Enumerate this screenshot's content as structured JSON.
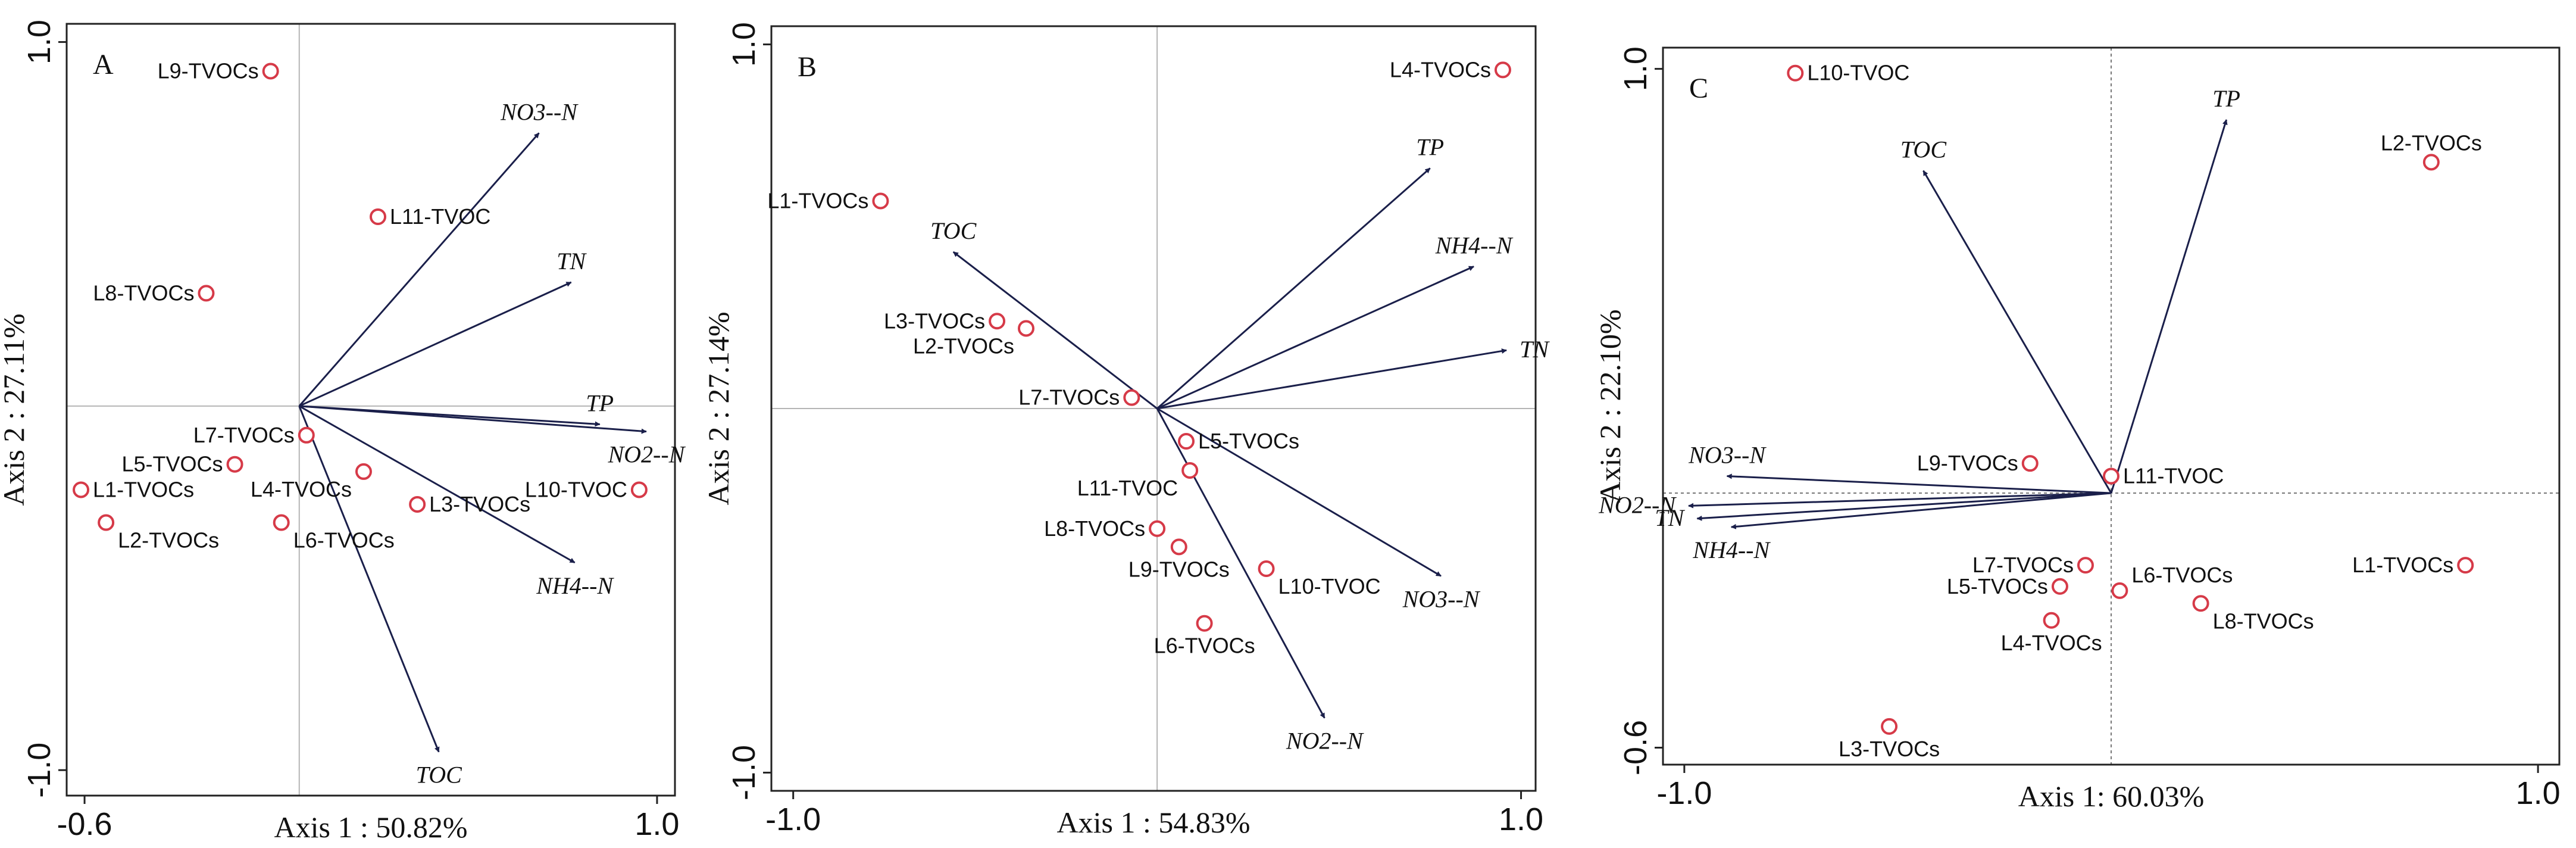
{
  "chart_data": [
    {
      "type": "scatter",
      "panel_label": "A",
      "xlabel": "Axis 1 : 50.82%",
      "ylabel": "Axis 2 : 27.11%",
      "xlim": [
        -0.65,
        1.05
      ],
      "ylim": [
        -1.07,
        1.05
      ],
      "xticks": [
        {
          "v": -0.6,
          "label": "-0.6"
        },
        {
          "v": 1.0,
          "label": "1.0"
        }
      ],
      "yticks": [
        {
          "v": 1.0,
          "label": "1.0"
        },
        {
          "v": -1.0,
          "label": "-1.0"
        }
      ],
      "zero_line_style": "solid",
      "points": [
        {
          "name": "L9-TVOCs",
          "x": -0.08,
          "y": 0.92,
          "label_pos": "left"
        },
        {
          "name": "L11-TVOC",
          "x": 0.22,
          "y": 0.52,
          "label_pos": "right"
        },
        {
          "name": "L8-TVOCs",
          "x": -0.26,
          "y": 0.31,
          "label_pos": "left"
        },
        {
          "name": "L7-TVOCs",
          "x": 0.02,
          "y": -0.08,
          "label_pos": "left"
        },
        {
          "name": "L5-TVOCs",
          "x": -0.18,
          "y": -0.16,
          "label_pos": "left"
        },
        {
          "name": "L4-TVOCs",
          "x": 0.18,
          "y": -0.18,
          "label_pos": "below-left"
        },
        {
          "name": "L1-TVOCs",
          "x": -0.61,
          "y": -0.23,
          "label_pos": "right"
        },
        {
          "name": "L3-TVOCs",
          "x": 0.33,
          "y": -0.27,
          "label_pos": "right"
        },
        {
          "name": "L2-TVOCs",
          "x": -0.54,
          "y": -0.32,
          "label_pos": "below-right"
        },
        {
          "name": "L6-TVOCs",
          "x": -0.05,
          "y": -0.32,
          "label_pos": "below-right"
        },
        {
          "name": "L10-TVOC",
          "x": 0.95,
          "y": -0.23,
          "label_pos": "left"
        }
      ],
      "vectors": [
        {
          "name": "NO3--N",
          "x": 0.67,
          "y": 0.75,
          "label_pos": "above"
        },
        {
          "name": "TN",
          "x": 0.76,
          "y": 0.34,
          "label_pos": "above"
        },
        {
          "name": "TP",
          "x": 0.84,
          "y": -0.05,
          "label_pos": "above"
        },
        {
          "name": "NO2--N",
          "x": 0.97,
          "y": -0.07,
          "label_pos": "below"
        },
        {
          "name": "NH4--N",
          "x": 0.77,
          "y": -0.43,
          "label_pos": "below"
        },
        {
          "name": "TOC",
          "x": 0.39,
          "y": -0.95,
          "label_pos": "below"
        }
      ]
    },
    {
      "type": "scatter",
      "panel_label": "B",
      "xlabel": "Axis 1 : 54.83%",
      "ylabel": "Axis 2 : 27.14%",
      "xlim": [
        -1.06,
        1.04
      ],
      "ylim": [
        -1.05,
        1.05
      ],
      "xticks": [
        {
          "v": -1.0,
          "label": "-1.0"
        },
        {
          "v": 1.0,
          "label": "1.0"
        }
      ],
      "yticks": [
        {
          "v": 1.0,
          "label": "1.0"
        },
        {
          "v": -1.0,
          "label": "-1.0"
        }
      ],
      "zero_line_style": "solid",
      "points": [
        {
          "name": "L4-TVOCs",
          "x": 0.95,
          "y": 0.93,
          "label_pos": "left"
        },
        {
          "name": "L1-TVOCs",
          "x": -0.76,
          "y": 0.57,
          "label_pos": "left"
        },
        {
          "name": "L3-TVOCs",
          "x": -0.44,
          "y": 0.24,
          "label_pos": "left"
        },
        {
          "name": "L2-TVOCs",
          "x": -0.36,
          "y": 0.22,
          "label_pos": "below-left"
        },
        {
          "name": "L7-TVOCs",
          "x": -0.07,
          "y": 0.03,
          "label_pos": "left"
        },
        {
          "name": "L5-TVOCs",
          "x": 0.08,
          "y": -0.09,
          "label_pos": "right"
        },
        {
          "name": "L11-TVOC",
          "x": 0.09,
          "y": -0.17,
          "label_pos": "below-left"
        },
        {
          "name": "L8-TVOCs",
          "x": 0.0,
          "y": -0.33,
          "label_pos": "left"
        },
        {
          "name": "L9-TVOCs",
          "x": 0.06,
          "y": -0.38,
          "label_pos": "below"
        },
        {
          "name": "L10-TVOC",
          "x": 0.3,
          "y": -0.44,
          "label_pos": "below-right"
        },
        {
          "name": "L6-TVOCs",
          "x": 0.13,
          "y": -0.59,
          "label_pos": "below"
        }
      ],
      "vectors": [
        {
          "name": "TP",
          "x": 0.75,
          "y": 0.66,
          "label_pos": "above"
        },
        {
          "name": "TOC",
          "x": -0.56,
          "y": 0.43,
          "label_pos": "above"
        },
        {
          "name": "NH4--N",
          "x": 0.87,
          "y": 0.39,
          "label_pos": "above"
        },
        {
          "name": "TN",
          "x": 0.96,
          "y": 0.16,
          "label_pos": "right"
        },
        {
          "name": "NO3--N",
          "x": 0.78,
          "y": -0.46,
          "label_pos": "below"
        },
        {
          "name": "NO2--N",
          "x": 0.46,
          "y": -0.85,
          "label_pos": "below"
        }
      ]
    },
    {
      "type": "scatter",
      "panel_label": "C",
      "xlabel": "Axis 1: 60.03%",
      "ylabel": "Axis 2 : 22.10%",
      "xlim": [
        -1.05,
        1.05
      ],
      "ylim": [
        -0.64,
        1.05
      ],
      "xticks": [
        {
          "v": -1.0,
          "label": "-1.0"
        },
        {
          "v": 1.0,
          "label": "1.0"
        }
      ],
      "yticks": [
        {
          "v": 1.0,
          "label": "1.0"
        },
        {
          "v": -0.6,
          "label": "-0.6"
        }
      ],
      "zero_line_style": "dashed",
      "points": [
        {
          "name": "L10-TVOC",
          "x": -0.74,
          "y": 0.99,
          "label_pos": "right"
        },
        {
          "name": "L2-TVOCs",
          "x": 0.75,
          "y": 0.78,
          "label_pos": "above"
        },
        {
          "name": "L9-TVOCs",
          "x": -0.19,
          "y": 0.07,
          "label_pos": "left"
        },
        {
          "name": "L11-TVOC",
          "x": 0.0,
          "y": 0.04,
          "label_pos": "right"
        },
        {
          "name": "L7-TVOCs",
          "x": -0.06,
          "y": -0.17,
          "label_pos": "left"
        },
        {
          "name": "L6-TVOCs",
          "x": 0.02,
          "y": -0.23,
          "label_pos": "above-right"
        },
        {
          "name": "L5-TVOCs",
          "x": -0.12,
          "y": -0.22,
          "label_pos": "left"
        },
        {
          "name": "L8-TVOCs",
          "x": 0.21,
          "y": -0.26,
          "label_pos": "below-right"
        },
        {
          "name": "L4-TVOCs",
          "x": -0.14,
          "y": -0.3,
          "label_pos": "below"
        },
        {
          "name": "L1-TVOCs",
          "x": 0.83,
          "y": -0.17,
          "label_pos": "left"
        },
        {
          "name": "L3-TVOCs",
          "x": -0.52,
          "y": -0.55,
          "label_pos": "below"
        }
      ],
      "vectors": [
        {
          "name": "TP",
          "x": 0.27,
          "y": 0.88,
          "label_pos": "above"
        },
        {
          "name": "TOC",
          "x": -0.44,
          "y": 0.76,
          "label_pos": "above"
        },
        {
          "name": "NO3--N",
          "x": -0.9,
          "y": 0.04,
          "label_pos": "above"
        },
        {
          "name": "NO2--N",
          "x": -0.99,
          "y": -0.03,
          "label_pos": "left"
        },
        {
          "name": "TN",
          "x": -0.97,
          "y": -0.06,
          "label_pos": "left"
        },
        {
          "name": "NH4--N",
          "x": -0.89,
          "y": -0.08,
          "label_pos": "below"
        }
      ]
    }
  ]
}
